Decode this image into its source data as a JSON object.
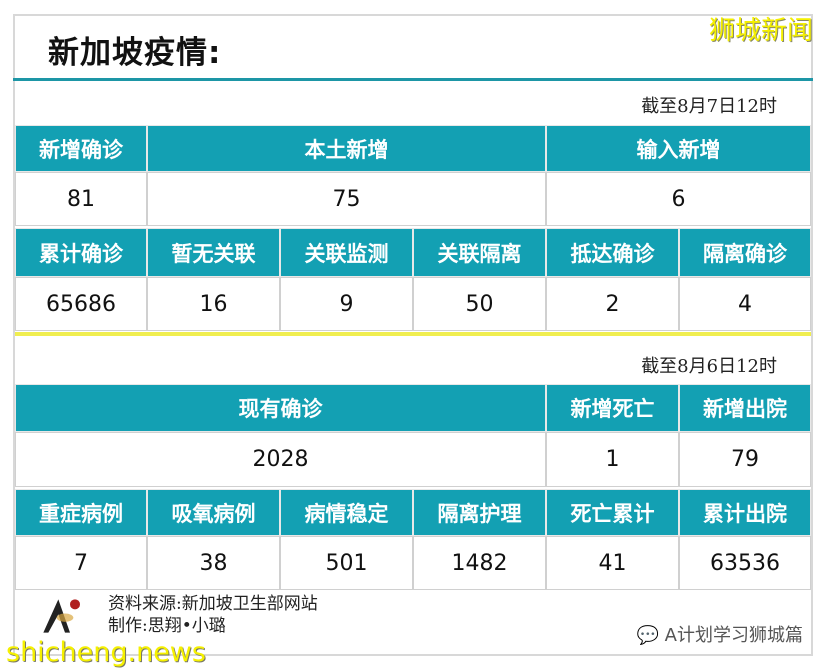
{
  "title": "新加坡疫情:",
  "brand": "狮城新闻",
  "section1": {
    "date": "截至8月7日12时",
    "row1_headers": [
      "新增确诊",
      "本土新增",
      "输入新增"
    ],
    "row1_values": [
      "81",
      "75",
      "6"
    ],
    "row2_headers": [
      "累计确诊",
      "暂无关联",
      "关联监测",
      "关联隔离",
      "抵达确诊",
      "隔离确诊"
    ],
    "row2_values": [
      "65686",
      "16",
      "9",
      "50",
      "2",
      "4"
    ]
  },
  "section2": {
    "date": "截至8月6日12时",
    "row1_headers": [
      "现有确诊",
      "新增死亡",
      "新增出院"
    ],
    "row1_values": [
      "2028",
      "1",
      "79"
    ],
    "row2_headers": [
      "重症病例",
      "吸氧病例",
      "病情稳定",
      "隔离护理",
      "死亡累计",
      "累计出院"
    ],
    "row2_values": [
      "7",
      "38",
      "501",
      "1482",
      "41",
      "63536"
    ]
  },
  "footer": {
    "source": "资料来源:新加坡卫生部网站",
    "author": "制作:思翔•小璐",
    "wechat": "A计划学习狮城篇",
    "watermark": "shicheng.news",
    "logo_text": "学习狮城篇"
  },
  "colors": {
    "header": "#13a0b3",
    "rule": "#1d96a6",
    "highlight": "#f0ee50"
  }
}
